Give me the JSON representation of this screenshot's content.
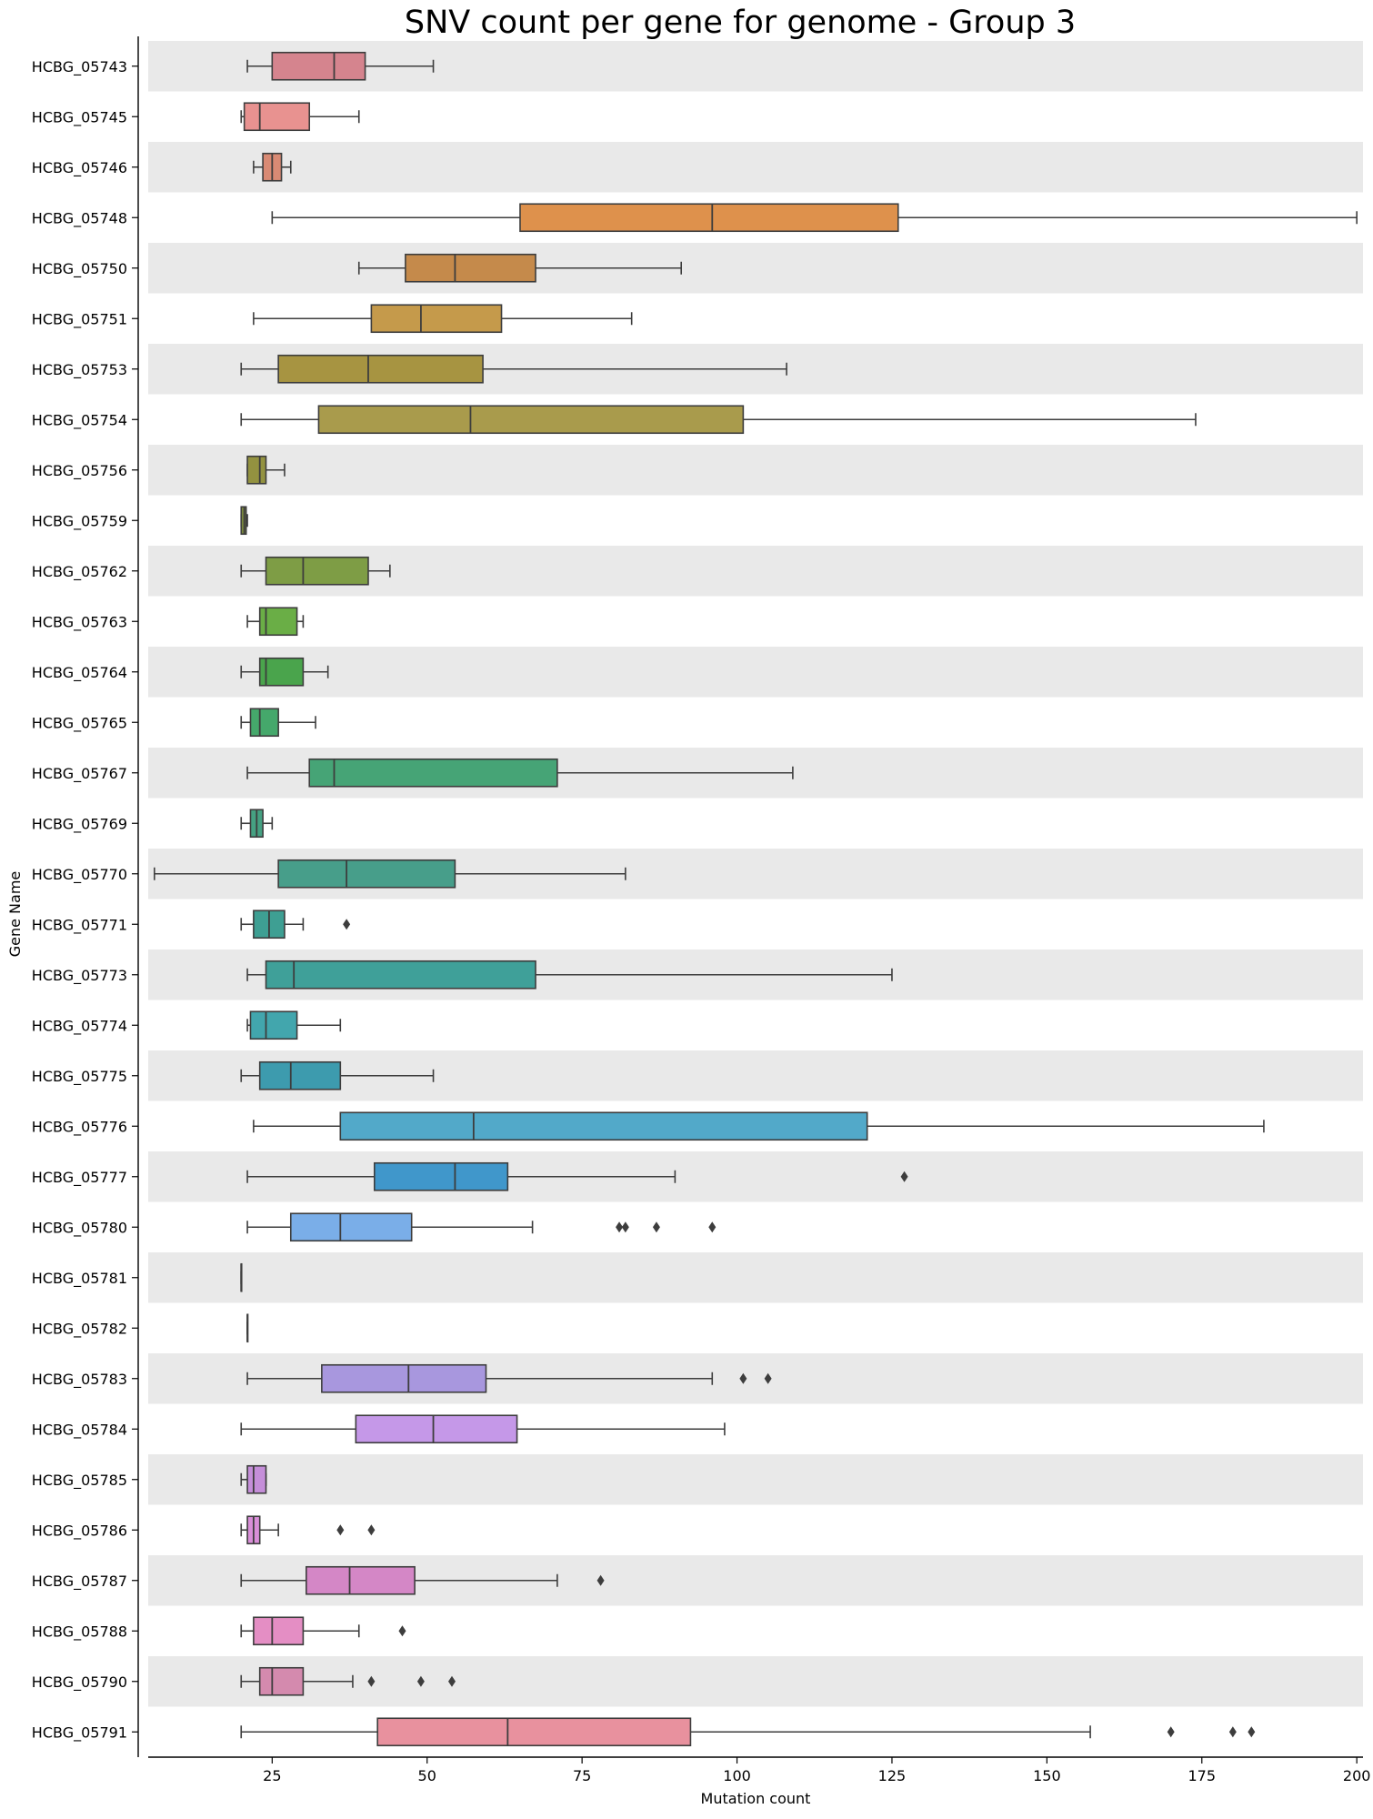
{
  "chart_data": {
    "type": "box",
    "orientation": "horizontal",
    "title": "SNV count per gene for genome - Group 3",
    "xlabel": "Mutation count",
    "ylabel": "Gene Name",
    "xlim": [
      5,
      201
    ],
    "xticks": [
      25,
      50,
      75,
      100,
      125,
      150,
      175,
      200
    ],
    "row_band_color": "#e9e9e9",
    "series": [
      {
        "name": "HCBG_05743",
        "min": 21,
        "q1": 25,
        "median": 35,
        "q3": 40,
        "max": 51,
        "outliers": [],
        "color": "#d5848e"
      },
      {
        "name": "HCBG_05745",
        "min": 20,
        "q1": 20.5,
        "median": 23,
        "q3": 31,
        "max": 39,
        "outliers": [],
        "color": "#e89290"
      },
      {
        "name": "HCBG_05746",
        "min": 22,
        "q1": 23.5,
        "median": 25,
        "q3": 26.5,
        "max": 28,
        "outliers": [],
        "color": "#d98a74"
      },
      {
        "name": "HCBG_05748",
        "min": 25,
        "q1": 65,
        "median": 96,
        "q3": 126,
        "max": 200,
        "outliers": [],
        "color": "#de914c"
      },
      {
        "name": "HCBG_05750",
        "min": 39,
        "q1": 46.5,
        "median": 54.5,
        "q3": 67.5,
        "max": 91,
        "outliers": [],
        "color": "#c58a4b"
      },
      {
        "name": "HCBG_05751",
        "min": 22,
        "q1": 41,
        "median": 49,
        "q3": 62,
        "max": 83,
        "outliers": [],
        "color": "#c59a4b"
      },
      {
        "name": "HCBG_05753",
        "min": 20,
        "q1": 26,
        "median": 40.5,
        "q3": 59,
        "max": 108,
        "outliers": [],
        "color": "#a79441"
      },
      {
        "name": "HCBG_05754",
        "min": 20,
        "q1": 32.5,
        "median": 57,
        "q3": 101,
        "max": 174,
        "outliers": [],
        "color": "#a99b4c"
      },
      {
        "name": "HCBG_05756",
        "min": 21,
        "q1": 21,
        "median": 23,
        "q3": 24,
        "max": 27,
        "outliers": [],
        "color": "#939240"
      },
      {
        "name": "HCBG_05759",
        "min": 20,
        "q1": 20,
        "median": 20.5,
        "q3": 20.8,
        "max": 21,
        "outliers": [],
        "color": "#7d8b3e"
      },
      {
        "name": "HCBG_05762",
        "min": 20,
        "q1": 24,
        "median": 30,
        "q3": 40.5,
        "max": 44,
        "outliers": [],
        "color": "#7e9d45"
      },
      {
        "name": "HCBG_05763",
        "min": 21,
        "q1": 23,
        "median": 24,
        "q3": 29,
        "max": 30,
        "outliers": [],
        "color": "#6aae46"
      },
      {
        "name": "HCBG_05764",
        "min": 20,
        "q1": 23,
        "median": 24,
        "q3": 30,
        "max": 34,
        "outliers": [],
        "color": "#4aa44c"
      },
      {
        "name": "HCBG_05765",
        "min": 20,
        "q1": 21.5,
        "median": 23,
        "q3": 26,
        "max": 32,
        "outliers": [],
        "color": "#45a86b"
      },
      {
        "name": "HCBG_05767",
        "min": 21,
        "q1": 31,
        "median": 35,
        "q3": 71,
        "max": 109,
        "outliers": [],
        "color": "#46a476"
      },
      {
        "name": "HCBG_05769",
        "min": 20,
        "q1": 21.5,
        "median": 22.5,
        "q3": 23.5,
        "max": 25,
        "outliers": [],
        "color": "#45a182"
      },
      {
        "name": "HCBG_05770",
        "min": 6,
        "q1": 26,
        "median": 37,
        "q3": 54.5,
        "max": 82,
        "outliers": [],
        "color": "#479e8a"
      },
      {
        "name": "HCBG_05771",
        "min": 20,
        "q1": 22,
        "median": 24.5,
        "q3": 27,
        "max": 30,
        "outliers": [
          37
        ],
        "color": "#3e9f93"
      },
      {
        "name": "HCBG_05773",
        "min": 21,
        "q1": 24,
        "median": 28.5,
        "q3": 67.5,
        "max": 125,
        "outliers": [],
        "color": "#3fa099"
      },
      {
        "name": "HCBG_05774",
        "min": 21,
        "q1": 21.5,
        "median": 24,
        "q3": 29,
        "max": 36,
        "outliers": [],
        "color": "#42a6ad"
      },
      {
        "name": "HCBG_05775",
        "min": 20,
        "q1": 23,
        "median": 28,
        "q3": 36,
        "max": 51,
        "outliers": [],
        "color": "#3d9bae"
      },
      {
        "name": "HCBG_05776",
        "min": 22,
        "q1": 36,
        "median": 57.5,
        "q3": 121,
        "max": 185,
        "outliers": [],
        "color": "#52a9c9"
      },
      {
        "name": "HCBG_05777",
        "min": 21,
        "q1": 41.5,
        "median": 54.5,
        "q3": 63,
        "max": 90,
        "outliers": [
          127
        ],
        "color": "#4097cb"
      },
      {
        "name": "HCBG_05780",
        "min": 21,
        "q1": 28,
        "median": 36,
        "q3": 47.5,
        "max": 67,
        "outliers": [
          81,
          82,
          87,
          96
        ],
        "color": "#7aaee8"
      },
      {
        "name": "HCBG_05781",
        "min": 20,
        "q1": 20,
        "median": 20,
        "q3": 20,
        "max": 20,
        "outliers": [],
        "color": "#8fa8e8"
      },
      {
        "name": "HCBG_05782",
        "min": 21,
        "q1": 21,
        "median": 21,
        "q3": 21,
        "max": 21,
        "outliers": [],
        "color": "#9d9ce4"
      },
      {
        "name": "HCBG_05783",
        "min": 21,
        "q1": 33,
        "median": 47,
        "q3": 59.5,
        "max": 96,
        "outliers": [
          101,
          105
        ],
        "color": "#a897de"
      },
      {
        "name": "HCBG_05784",
        "min": 20,
        "q1": 38.5,
        "median": 51,
        "q3": 64.5,
        "max": 98,
        "outliers": [],
        "color": "#c598e8"
      },
      {
        "name": "HCBG_05785",
        "min": 20,
        "q1": 21,
        "median": 22,
        "q3": 24,
        "max": 24,
        "outliers": [],
        "color": "#c58ed9"
      },
      {
        "name": "HCBG_05786",
        "min": 20,
        "q1": 21,
        "median": 22,
        "q3": 23,
        "max": 26,
        "outliers": [
          36,
          41
        ],
        "color": "#d98ed8"
      },
      {
        "name": "HCBG_05787",
        "min": 20,
        "q1": 30.5,
        "median": 37.5,
        "q3": 48,
        "max": 71,
        "outliers": [
          78
        ],
        "color": "#d487c6"
      },
      {
        "name": "HCBG_05788",
        "min": 20,
        "q1": 22,
        "median": 25,
        "q3": 30,
        "max": 39,
        "outliers": [
          46
        ],
        "color": "#e48ec4"
      },
      {
        "name": "HCBG_05790",
        "min": 20,
        "q1": 23,
        "median": 25,
        "q3": 30,
        "max": 38,
        "outliers": [
          41,
          49,
          54
        ],
        "color": "#d48aae"
      },
      {
        "name": "HCBG_05791",
        "min": 20,
        "q1": 42,
        "median": 63,
        "q3": 92.5,
        "max": 157,
        "outliers": [
          170,
          180,
          183
        ],
        "color": "#e8919e"
      }
    ]
  }
}
